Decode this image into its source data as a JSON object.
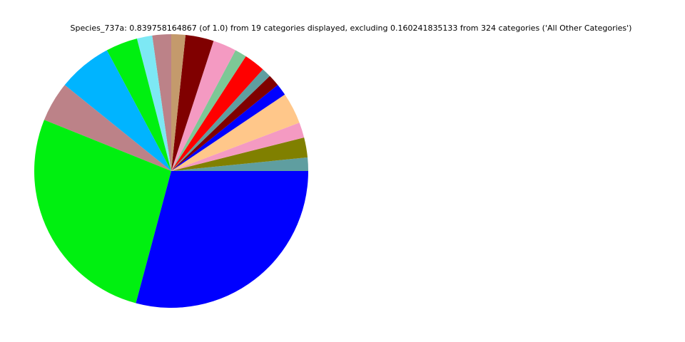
{
  "chart_data": {
    "type": "pie",
    "title": "Species_737a: 0.839758164867 (of 1.0) from 19 categories displayed, excluding 0.160241835133 from 324 categories ('All Other Categories')",
    "values": [
      0.0133,
      0.0198,
      0.0152,
      0.031,
      0.0117,
      0.0117,
      0.0093,
      0.021,
      0.0117,
      0.0233,
      0.028,
      0.014,
      0.0187,
      0.0152,
      0.0315,
      0.0537,
      0.0397,
      0.2263,
      0.2449
    ],
    "colors": [
      "#5f9ea0",
      "#808000",
      "#f49ac2",
      "#ffc78a",
      "#0000ff",
      "#800000",
      "#5f9ea0",
      "#ff0000",
      "#7dc896",
      "#f49ac2",
      "#800000",
      "#c49a6c",
      "#bc8288",
      "#7de8f4",
      "#00f010",
      "#00b4ff",
      "#bc8288",
      "#00f010",
      "#0000ff"
    ],
    "start_angle": 0,
    "counterclockwise": true
  }
}
